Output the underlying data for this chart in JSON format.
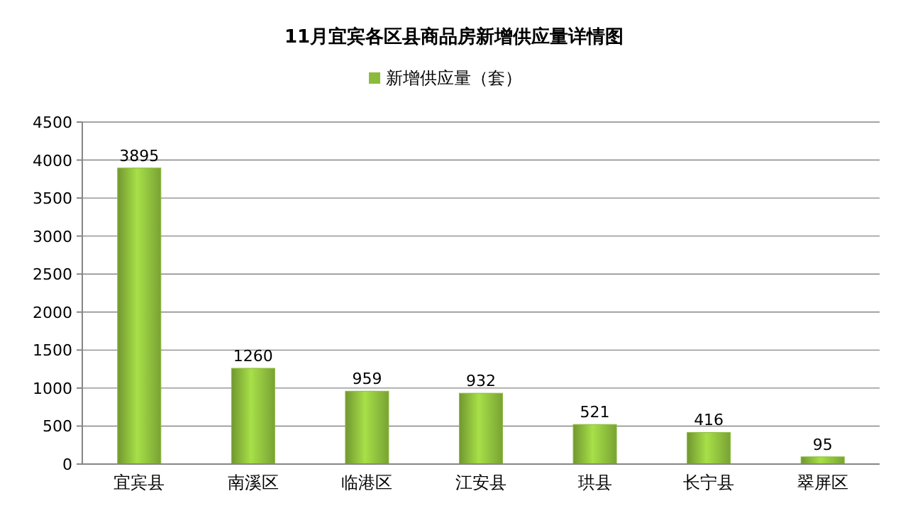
{
  "chart_data": {
    "type": "bar",
    "title": "11月宜宾各区县商品房新增供应量详情图",
    "categories": [
      "宜宾县",
      "南溪区",
      "临港区",
      "江安县",
      "珙县",
      "长宁县",
      "翠屏区"
    ],
    "series": [
      {
        "name": "新增供应量（套）",
        "color": "#8cbb3c",
        "values": [
          3895,
          1260,
          959,
          932,
          521,
          416,
          95
        ]
      }
    ],
    "ylim": [
      0,
      4500
    ],
    "yticks": [
      0,
      500,
      1000,
      1500,
      2000,
      2500,
      3000,
      3500,
      4000,
      4500
    ],
    "grid": "y",
    "legend": "top",
    "data_labels": true
  }
}
